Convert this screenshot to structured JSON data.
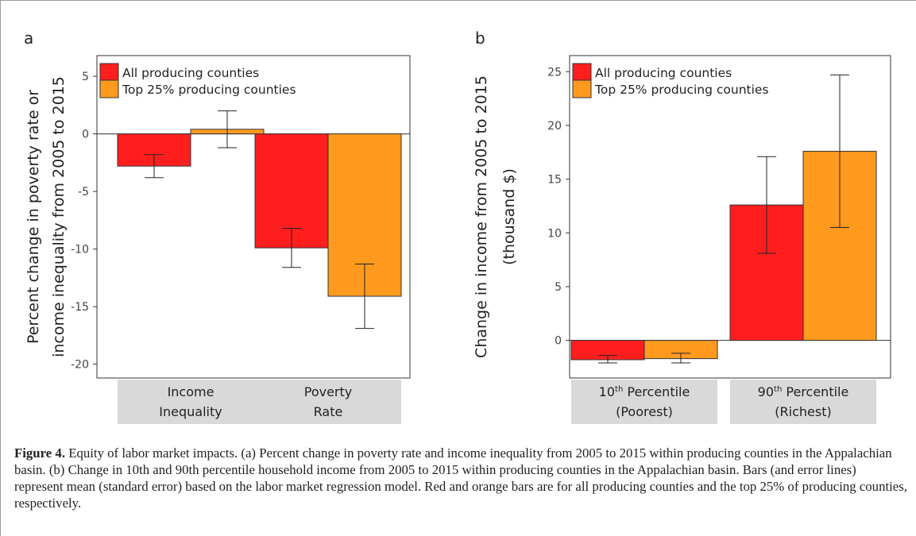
{
  "figure": {
    "panels": [
      "a",
      "b"
    ],
    "caption_label": "Figure 4.",
    "caption_text": " Equity of labor market impacts. (a) Percent change in poverty rate and income inequality from 2005 to 2015 within producing counties in the Appalachian basin. (b) Change in 10th and 90th percentile household income from 2005 to 2015 within producing counties in the Appalachian basin. Bars (and error lines) represent mean (standard error) based on the labor market regression model. Red and orange bars are for all producing counties and the top 25% of producing counties, respectively."
  },
  "colors": {
    "all_producing": "#ff1e1e",
    "top25": "#ff9a1e",
    "category_box": "#d9d9d9",
    "axis": "#333333",
    "frame": "#9a9a9a"
  },
  "chart_data": [
    {
      "panel": "a",
      "type": "bar",
      "categories": [
        [
          "Income",
          "Inequality"
        ],
        [
          "Poverty",
          "Rate"
        ]
      ],
      "series": [
        {
          "name": "All producing counties",
          "values": [
            -2.8,
            -9.9
          ],
          "error_low": [
            -3.8,
            -11.6
          ],
          "error_high": [
            -1.8,
            -8.2
          ]
        },
        {
          "name": "Top 25% producing counties",
          "values": [
            0.4,
            -14.1
          ],
          "error_low": [
            -1.2,
            -16.9
          ],
          "error_high": [
            2.0,
            -11.3
          ]
        }
      ],
      "ylabel_lines": [
        "Percent change in poverty rate or",
        "income inequality from 2005 to 2015"
      ],
      "xlabel": "",
      "yticks": [
        5,
        0,
        -5,
        -10,
        -15,
        -20
      ],
      "ylim": [
        -21.2,
        6.8
      ],
      "legend_position": "top-left",
      "grid": false
    },
    {
      "panel": "b",
      "type": "bar",
      "categories": [
        [
          "10",
          "th",
          " Percentile",
          "(Poorest)"
        ],
        [
          "90",
          "th",
          " Percentile",
          "(Richest)"
        ]
      ],
      "series": [
        {
          "name": "All producing counties",
          "values": [
            -1.8,
            12.6
          ],
          "error_low": [
            -2.1,
            8.1
          ],
          "error_high": [
            -1.4,
            17.1
          ]
        },
        {
          "name": "Top 25% producing counties",
          "values": [
            -1.7,
            17.6
          ],
          "error_low": [
            -2.1,
            10.5
          ],
          "error_high": [
            -1.2,
            24.7
          ]
        }
      ],
      "ylabel_lines": [
        "Change in income from 2005 to 2015",
        "(thousand $)"
      ],
      "xlabel": "",
      "yticks": [
        25,
        20,
        15,
        10,
        5,
        0
      ],
      "ylim": [
        -3.5,
        26.5
      ],
      "legend_position": "top-left",
      "grid": false
    }
  ]
}
